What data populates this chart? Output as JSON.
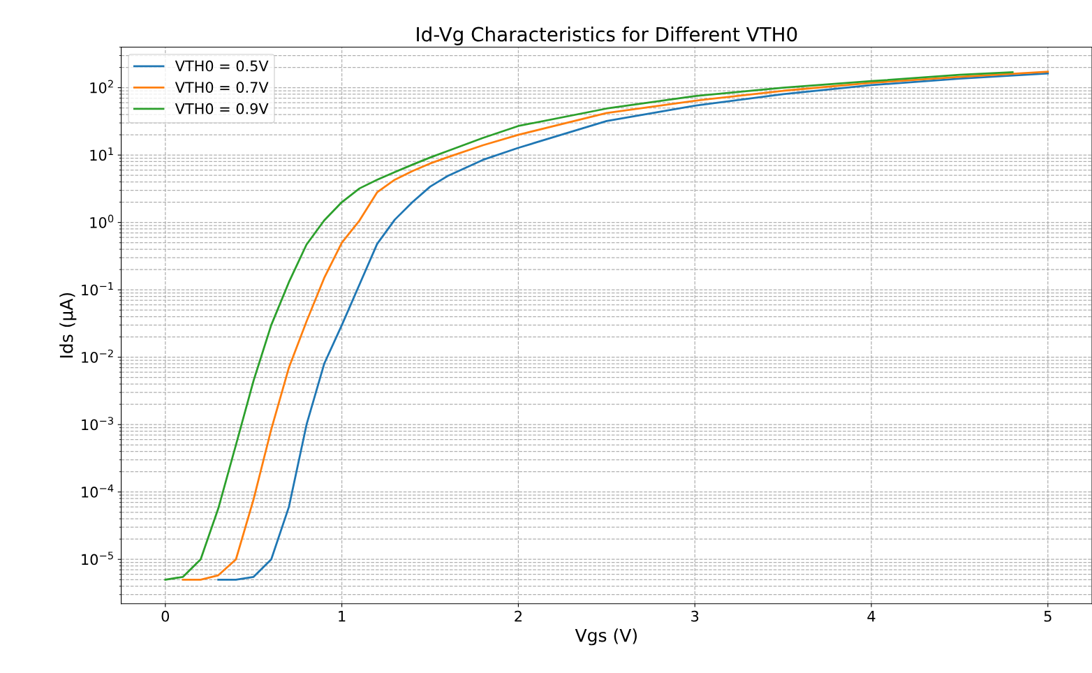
{
  "chart_data": {
    "type": "line",
    "title": "Id-Vg Characteristics for Different VTH0",
    "xlabel": "Vgs (V)",
    "ylabel": "Ids (μA)",
    "log": "y",
    "grid": true,
    "legend": "top left",
    "marker": "none",
    "line_style": "solid",
    "xlim": [
      -0.25,
      5.25
    ],
    "xticks": [
      0,
      1,
      2,
      3,
      4,
      5
    ],
    "ylim": [
      2.2e-06,
      400
    ],
    "yticks": [
      {
        "value": 1e-05,
        "label": "10$^{−5}$"
      },
      {
        "value": 0.0001,
        "label": "10$^{−4}$"
      },
      {
        "value": 0.001,
        "label": "10$^{−3}$"
      },
      {
        "value": 0.01,
        "label": "10$^{−2}$"
      },
      {
        "value": 0.1,
        "label": "10$^{−1}$"
      },
      {
        "value": 1,
        "label": "10$^{0}$"
      },
      {
        "value": 10,
        "label": "10$^{1}$"
      },
      {
        "value": 100,
        "label": "10$^{2}$"
      }
    ],
    "series": [
      {
        "name": "VTH0 = 0.5V",
        "color": "#1f77b4",
        "x": [
          0.3,
          0.4,
          0.5,
          0.6,
          0.7,
          0.8,
          0.9,
          1.0,
          1.1,
          1.2,
          1.3,
          1.4,
          1.5,
          1.6,
          1.8,
          2.0,
          2.5,
          3.0,
          3.5,
          4.0,
          4.5,
          5.0
        ],
        "values": [
          5e-06,
          5e-06,
          5.5e-06,
          1e-05,
          6e-05,
          0.001,
          0.008,
          0.03,
          0.12,
          0.48,
          1.1,
          2.0,
          3.4,
          4.9,
          8.5,
          12.8,
          32,
          54,
          80,
          109,
          136,
          163
        ]
      },
      {
        "name": "VTH0 = 0.7V",
        "color": "#ff7f0e",
        "x": [
          0.1,
          0.2,
          0.3,
          0.4,
          0.5,
          0.6,
          0.7,
          0.8,
          0.9,
          1.0,
          1.1,
          1.2,
          1.3,
          1.4,
          1.5,
          1.6,
          1.8,
          2.0,
          2.5,
          3.0,
          3.5,
          4.0,
          4.5,
          5.0
        ],
        "values": [
          5e-06,
          5e-06,
          5.8e-06,
          1e-05,
          7.8e-05,
          0.00085,
          0.007,
          0.034,
          0.15,
          0.5,
          1.07,
          2.8,
          4.3,
          5.8,
          7.5,
          9.3,
          14,
          20,
          42,
          64,
          90,
          118,
          145,
          173
        ]
      },
      {
        "name": "VTH0 = 0.9V",
        "color": "#2ca02c",
        "x": [
          0.0,
          0.1,
          0.2,
          0.3,
          0.4,
          0.5,
          0.6,
          0.7,
          0.8,
          0.9,
          1.0,
          1.1,
          1.2,
          1.3,
          1.4,
          1.5,
          1.6,
          1.8,
          2.0,
          2.5,
          3.0,
          3.5,
          4.0,
          4.5,
          4.8
        ],
        "values": [
          5e-06,
          5.5e-06,
          1e-05,
          5.7e-05,
          0.0005,
          0.0045,
          0.03,
          0.13,
          0.47,
          1.07,
          2.0,
          3.2,
          4.3,
          5.6,
          7.2,
          9.2,
          11.5,
          18,
          27,
          49,
          75,
          100,
          125,
          155,
          170
        ]
      }
    ]
  }
}
